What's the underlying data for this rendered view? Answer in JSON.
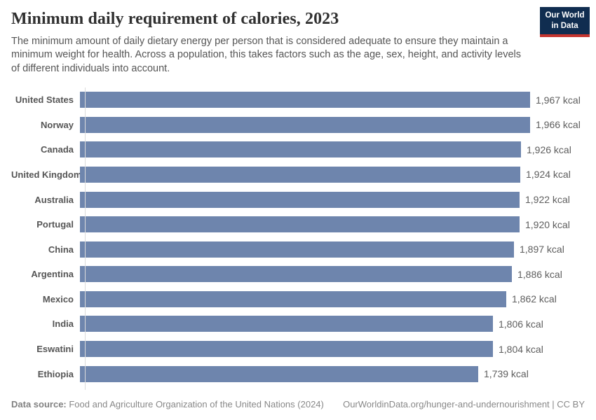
{
  "header": {
    "title": "Minimum daily requirement of calories, 2023",
    "subtitle": "The minimum amount of daily dietary energy per person that is considered adequate to ensure they maintain a minimum weight for health. Across a population, this takes factors such as the age, sex, height, and activity levels of different individuals into account.",
    "logo": {
      "line1": "Our World",
      "line2": "in Data"
    }
  },
  "chart_data": {
    "type": "bar",
    "orientation": "horizontal",
    "title": "Minimum daily requirement of calories, 2023",
    "unit": "kcal",
    "xlim": [
      0,
      1967
    ],
    "grid": false,
    "legend": "none",
    "categories": [
      "United States",
      "Norway",
      "Canada",
      "United Kingdom",
      "Australia",
      "Portugal",
      "China",
      "Argentina",
      "Mexico",
      "India",
      "Eswatini",
      "Ethiopia"
    ],
    "values": [
      1967,
      1966,
      1926,
      1924,
      1922,
      1920,
      1897,
      1886,
      1862,
      1806,
      1804,
      1739
    ],
    "value_labels": [
      "1,967 kcal",
      "1,966 kcal",
      "1,926 kcal",
      "1,924 kcal",
      "1,922 kcal",
      "1,920 kcal",
      "1,897 kcal",
      "1,886 kcal",
      "1,862 kcal",
      "1,806 kcal",
      "1,804 kcal",
      "1,739 kcal"
    ]
  },
  "colors": {
    "bar": "#6e85ad",
    "axis": "#dcdcdc",
    "logo_bg": "#102d50",
    "logo_accent": "#c5352f"
  },
  "footer": {
    "datasource_label": "Data source:",
    "datasource_text": " Food and Agriculture Organization of the United Nations (2024)",
    "link_text": "OurWorldinData.org/hunger-and-undernourishment | CC BY"
  }
}
